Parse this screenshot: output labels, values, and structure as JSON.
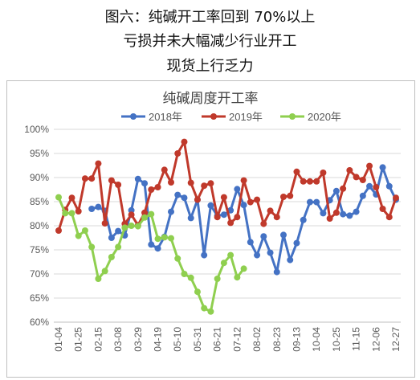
{
  "header": {
    "line1": "图六：纯碱开工率回到 70%以上",
    "line2": "亏损并未大幅减少行业开工",
    "line3": "现货上行乏力"
  },
  "chart_data": {
    "type": "line",
    "title": "纯碱周度开工率",
    "xlabel": "",
    "ylabel": "",
    "ylim": [
      60,
      100
    ],
    "y_ticks": [
      "60%",
      "65%",
      "70%",
      "75%",
      "80%",
      "85%",
      "90%",
      "95%",
      "100%"
    ],
    "x_tick_labels": [
      "01-04",
      "01-25",
      "02-15",
      "03-08",
      "03-29",
      "04-19",
      "05-10",
      "05-31",
      "06-21",
      "07-12",
      "08-02",
      "08-23",
      "09-13",
      "10-04",
      "10-25",
      "11-15",
      "12-06",
      "12-27"
    ],
    "grid": true,
    "legend_position": "top",
    "series": [
      {
        "name": "2018年",
        "color": "#4472c4",
        "values": [
          null,
          null,
          null,
          null,
          null,
          83.5,
          83.9,
          83.1,
          77.5,
          78.9,
          78.0,
          83.2,
          89.7,
          88.8,
          76.1,
          75.3,
          77.7,
          82.9,
          86.4,
          85.8,
          81.6,
          85.4,
          73.9,
          84.2,
          82.1,
          82.3,
          83.2,
          87.6,
          84.3,
          76.6,
          73.9,
          77.8,
          74.4,
          70.4,
          78.1,
          72.9,
          76.4,
          81.2,
          84.9,
          84.9,
          82.6,
          85.3,
          87.2,
          82.4,
          82.1,
          82.9,
          86.2,
          88.2,
          86.5,
          92.1,
          88.2,
          85.4
        ]
      },
      {
        "name": "2019年",
        "color": "#c0392b",
        "values": [
          79.0,
          83.3,
          85.8,
          83.0,
          89.8,
          89.8,
          92.9,
          80.5,
          89.4,
          88.5,
          80.4,
          82.3,
          80.1,
          82.7,
          87.5,
          88.0,
          91.6,
          89.0,
          95.0,
          97.4,
          88.9,
          85.4,
          88.3,
          88.8,
          81.8,
          85.9,
          80.6,
          81.8,
          89.4,
          84.9,
          85.4,
          80.4,
          83.1,
          81.8,
          86.0,
          86.2,
          91.2,
          89.2,
          89.2,
          89.2,
          91.0,
          81.5,
          82.7,
          87.7,
          91.5,
          90.1,
          89.5,
          92.4,
          88.0,
          83.5,
          81.8,
          85.8
        ]
      },
      {
        "name": "2020年",
        "color": "#8fcf4f",
        "values": [
          85.9,
          82.6,
          82.6,
          77.9,
          79.0,
          75.6,
          69.0,
          70.6,
          73.5,
          75.6,
          79.6,
          80.0,
          79.9,
          81.7,
          82.4,
          77.3,
          77.6,
          77.4,
          73.2,
          70.0,
          69.2,
          66.3,
          62.9,
          62.2,
          69.0,
          72.3,
          73.9,
          69.3,
          71.1,
          null,
          null,
          null,
          null,
          null,
          null,
          null,
          null,
          null,
          null,
          null,
          null,
          null,
          null,
          null,
          null,
          null,
          null,
          null,
          null,
          null,
          null,
          null
        ]
      }
    ]
  }
}
